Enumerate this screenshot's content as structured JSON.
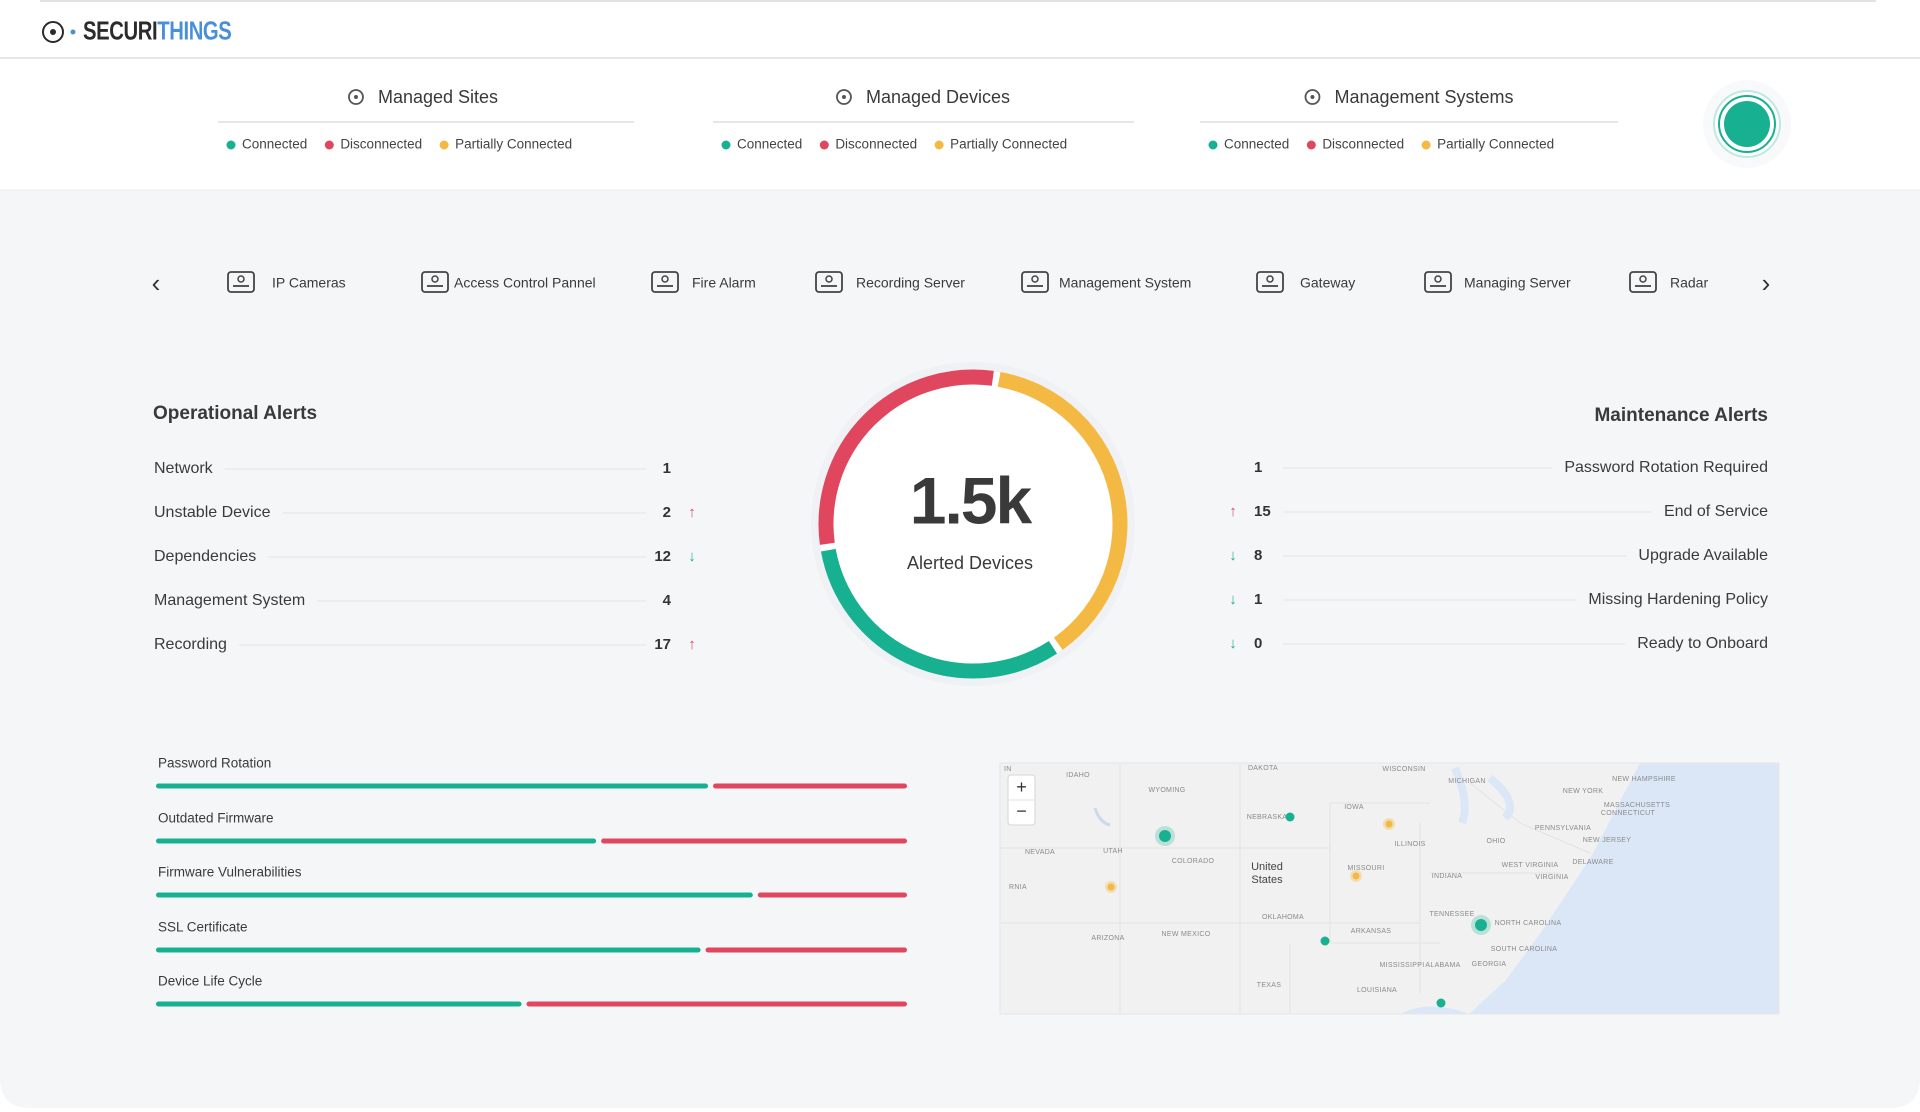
{
  "header": {
    "logo": {
      "part1": "SECURI",
      "part2": "THINGS",
      "color1": "#2b2b2b",
      "color2": "#4a90d9"
    }
  },
  "status_groups": [
    {
      "title": "Managed Sites",
      "legend": [
        {
          "label": "Connected",
          "color": "#17b191"
        },
        {
          "label": "Disconnected",
          "color": "#e0475f"
        },
        {
          "label": "Partially Connected",
          "color": "#f4b942"
        }
      ]
    },
    {
      "title": "Managed Devices",
      "legend": [
        {
          "label": "Connected",
          "color": "#17b191"
        },
        {
          "label": "Disconnected",
          "color": "#e0475f"
        },
        {
          "label": "Partially Connected",
          "color": "#f4b942"
        }
      ]
    },
    {
      "title": "Management Systems",
      "legend": [
        {
          "label": "Connected",
          "color": "#17b191"
        },
        {
          "label": "Disconnected",
          "color": "#e0475f"
        },
        {
          "label": "Partially Connected",
          "color": "#f4b942"
        }
      ]
    }
  ],
  "device_tabs": {
    "prev": "‹",
    "next": "›",
    "items": [
      "IP Cameras",
      "Access Control Pannel",
      "Fire Alarm",
      "Recording Server",
      "Management System",
      "Gateway",
      "Managing Server",
      "Radar"
    ]
  },
  "operational_alerts": {
    "title": "Operational Alerts",
    "rows": [
      {
        "label": "Network",
        "count": 1
      },
      {
        "label": "Unstable Device",
        "count": 2,
        "trend": {
          "glyph": "↑",
          "color": "#e0475f"
        }
      },
      {
        "label": "Dependencies",
        "count": 12,
        "trend": {
          "glyph": "↓",
          "color": "#17b191"
        }
      },
      {
        "label": "Management System",
        "count": 4
      },
      {
        "label": "Recording",
        "count": 17,
        "trend": {
          "glyph": "↑",
          "color": "#e0475f"
        }
      }
    ]
  },
  "donut": {
    "center_value": "1.5k",
    "center_label": "Alerted Devices",
    "segments": [
      {
        "color": "#f4b942",
        "value": 38
      },
      {
        "color": "#17b191",
        "value": 32
      },
      {
        "color": "#e0475f",
        "value": 30
      }
    ]
  },
  "maintenance_alerts": {
    "title": "Maintenance Alerts",
    "rows": [
      {
        "label": "Password Rotation Required",
        "count": 1
      },
      {
        "label": "End of Service",
        "count": 15,
        "trend": {
          "glyph": "↑",
          "color": "#e0475f"
        }
      },
      {
        "label": "Upgrade Available",
        "count": 8,
        "trend": {
          "glyph": "↓",
          "color": "#17b191"
        }
      },
      {
        "label": "Missing Hardening Policy",
        "count": 1,
        "trend": {
          "glyph": "↓",
          "color": "#17b191"
        }
      },
      {
        "label": "Ready to Onboard",
        "count": 0,
        "trend": {
          "glyph": "↓",
          "color": "#17b191"
        }
      }
    ]
  },
  "compliance": {
    "colors": {
      "ok": "#17b191",
      "failing": "#e0475f"
    },
    "bars": [
      {
        "label": "Password Rotation",
        "ok": 74,
        "failing": 26
      },
      {
        "label": "Outdated Firmware",
        "ok": 59,
        "failing": 41
      },
      {
        "label": "Firmware Vulnerabilities",
        "ok": 80,
        "failing": 20
      },
      {
        "label": "SSL Certificate",
        "ok": 73,
        "failing": 27
      },
      {
        "label": "Device Life Cycle",
        "ok": 49,
        "failing": 51
      }
    ]
  },
  "map": {
    "zoom_in": "+",
    "zoom_out": "−",
    "country": [
      "United",
      "States"
    ],
    "labels": [
      "IN",
      "IDAHO",
      "WYOMING",
      "DAKOTA",
      "WISCONSIN",
      "MICHIGAN",
      "NEW YORK",
      "NEW HAMPSHIRE",
      "MASSACHUSETTS",
      "CONNECTICUT",
      "NEBRASKA",
      "IOWA",
      "PENNSYLVANIA",
      "NEW JERSEY",
      "ILLINOIS",
      "OHIO",
      "NEVADA",
      "UTAH",
      "COLORADO",
      "WEST VIRGINIA",
      "DELAWARE",
      "MISSOURI",
      "INDIANA",
      "VIRGINIA",
      "RNIA",
      "OKLAHOMA",
      "TENNESSEE",
      "NORTH CAROLINA",
      "ARKANSAS",
      "ARIZONA",
      "NEW MEXICO",
      "SOUTH CAROLINA",
      "MISSISSIPPI",
      "ALABAMA",
      "GEORGIA",
      "TEXAS",
      "LOUISIANA"
    ]
  }
}
